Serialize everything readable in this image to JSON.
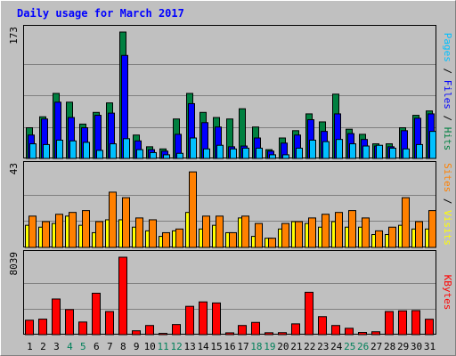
{
  "chart_data": {
    "type": "bar",
    "title": "Daily usage for March 2017",
    "categories": [
      "1",
      "2",
      "3",
      "4",
      "5",
      "6",
      "7",
      "8",
      "9",
      "10",
      "11",
      "12",
      "13",
      "14",
      "15",
      "16",
      "17",
      "18",
      "19",
      "20",
      "21",
      "22",
      "23",
      "24",
      "25",
      "26",
      "27",
      "28",
      "29",
      "30",
      "31"
    ],
    "weekend_days": [
      "4",
      "5",
      "11",
      "12",
      "18",
      "19",
      "25",
      "26"
    ],
    "panels": [
      {
        "id": "hits-files-pages",
        "ymax": 173,
        "ymax_label": "173",
        "label_parts": [
          {
            "text": "Pages",
            "color": "#00c0ff"
          },
          {
            "text": " / ",
            "color": "#000000"
          },
          {
            "text": "Files",
            "color": "#0000ff"
          },
          {
            "text": " / ",
            "color": "#000000"
          },
          {
            "text": "Hits",
            "color": "#008040"
          }
        ],
        "series": [
          {
            "name": "Hits",
            "color": "#008040",
            "values": [
              42,
              57,
              89,
              77,
              47,
              63,
              76,
              173,
              32,
              16,
              13,
              54,
              89,
              63,
              56,
              54,
              68,
              43,
              12,
              28,
              38,
              61,
              50,
              88,
              40,
              33,
              20,
              20,
              42,
              59,
              65
            ]
          },
          {
            "name": "Files",
            "color": "#0000ff",
            "values": [
              32,
              54,
              77,
              56,
              42,
              59,
              62,
              141,
              24,
              12,
              10,
              33,
              75,
              49,
              43,
              16,
              17,
              28,
              10,
              21,
              32,
              53,
              37,
              61,
              34,
              26,
              17,
              16,
              38,
              55,
              61
            ]
          },
          {
            "name": "Pages",
            "color": "#00c0ff",
            "values": [
              20,
              19,
              25,
              24,
              22,
              11,
              20,
              27,
              12,
              8,
              5,
              7,
              28,
              13,
              18,
              13,
              14,
              14,
              5,
              5,
              14,
              25,
              23,
              26,
              20,
              17,
              18,
              14,
              13,
              19,
              37
            ]
          }
        ]
      },
      {
        "id": "visits-sites",
        "ymax": 43,
        "ymax_label": "43",
        "label_parts": [
          {
            "text": "Sites",
            "color": "#ff8000"
          },
          {
            "text": " / ",
            "color": "#000000"
          },
          {
            "text": "Visits",
            "color": "#ffff00"
          }
        ],
        "series": [
          {
            "name": "Visits",
            "color": "#ffff00",
            "values": [
              12,
              11,
              13,
              17,
              12,
              8,
              15,
              15,
              11,
              9,
              6,
              9,
              19,
              10,
              12,
              8,
              16,
              6,
              5,
              10,
              14,
              13,
              11,
              14,
              11,
              11,
              7,
              7,
              12,
              10,
              10
            ]
          },
          {
            "name": "Sites",
            "color": "#ff8000",
            "values": [
              17,
              14,
              18,
              19,
              20,
              14,
              30,
              27,
              16,
              15,
              8,
              10,
              41,
              17,
              17,
              8,
              17,
              13,
              5,
              13,
              14,
              16,
              18,
              19,
              20,
              16,
              9,
              11,
              27,
              14,
              20
            ]
          }
        ]
      },
      {
        "id": "kbytes",
        "ymax": 8039,
        "ymax_label": "8039",
        "label_parts": [
          {
            "text": "KBytes",
            "color": "#ff0000"
          }
        ],
        "series": [
          {
            "name": "KBytes",
            "color": "#ff0000",
            "values": [
              1500,
              1610,
              3700,
              2600,
              1310,
              4300,
              2400,
              8039,
              400,
              950,
              130,
              1050,
              2940,
              3400,
              3290,
              190,
              950,
              1270,
              200,
              210,
              1120,
              4400,
              1870,
              950,
              660,
              230,
              300,
              2400,
              2470,
              2500,
              1600
            ]
          }
        ]
      }
    ]
  }
}
